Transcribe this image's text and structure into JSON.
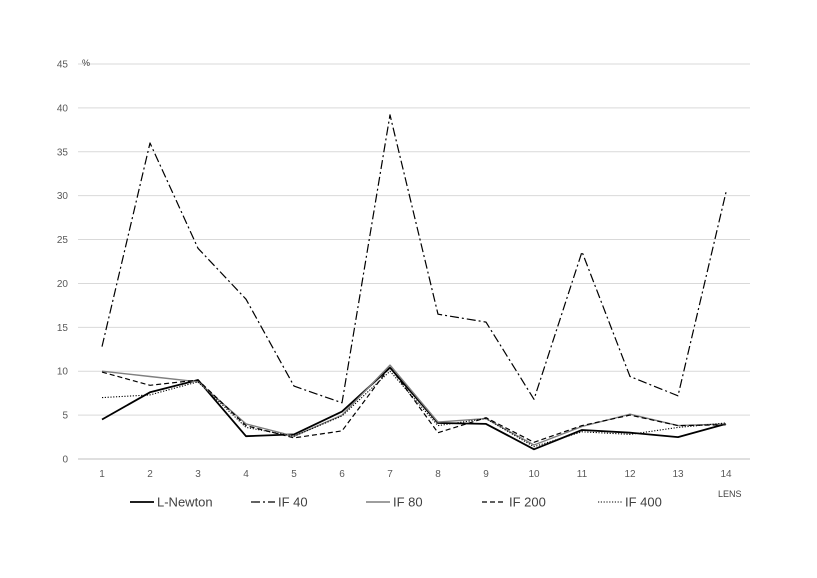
{
  "chart_data": {
    "type": "line",
    "title": "",
    "xlabel": "LENS",
    "ylabel": "%",
    "x": [
      1,
      2,
      3,
      4,
      5,
      6,
      7,
      8,
      9,
      10,
      11,
      12,
      13,
      14
    ],
    "ylim": [
      0,
      45
    ],
    "yticks": [
      0,
      5,
      10,
      15,
      20,
      25,
      30,
      35,
      40,
      45
    ],
    "grid": true,
    "legend_position": "bottom",
    "series": [
      {
        "name": "L-Newton",
        "values": [
          4.5,
          7.6,
          9.0,
          2.6,
          2.8,
          5.4,
          10.4,
          4.1,
          4.0,
          1.1,
          3.3,
          3.0,
          2.5,
          4.0
        ],
        "color": "#000000",
        "style": "solid"
      },
      {
        "name": "IF 40",
        "values": [
          12.8,
          36.0,
          24.0,
          18.2,
          8.3,
          6.4,
          39.2,
          16.5,
          15.6,
          6.8,
          23.6,
          9.4,
          7.2,
          30.4
        ],
        "color": "#000000",
        "style": "dashdot"
      },
      {
        "name": "IF 80",
        "values": [
          10.0,
          9.4,
          8.8,
          4.0,
          2.6,
          5.0,
          10.7,
          4.2,
          4.6,
          1.6,
          3.7,
          5.1,
          3.8,
          4.0
        ],
        "color": "#7f7f7f",
        "style": "solid"
      },
      {
        "name": "IF 200",
        "values": [
          9.9,
          8.4,
          9.0,
          3.8,
          2.4,
          3.2,
          10.5,
          3.0,
          4.7,
          1.9,
          3.8,
          5.0,
          3.8,
          3.9
        ],
        "color": "#000000",
        "style": "dashed"
      },
      {
        "name": "IF 400",
        "values": [
          7.0,
          7.3,
          8.8,
          3.6,
          2.6,
          4.9,
          10.0,
          3.8,
          4.6,
          1.4,
          3.1,
          2.8,
          3.6,
          4.1
        ],
        "color": "#000000",
        "style": "dotted"
      }
    ]
  }
}
